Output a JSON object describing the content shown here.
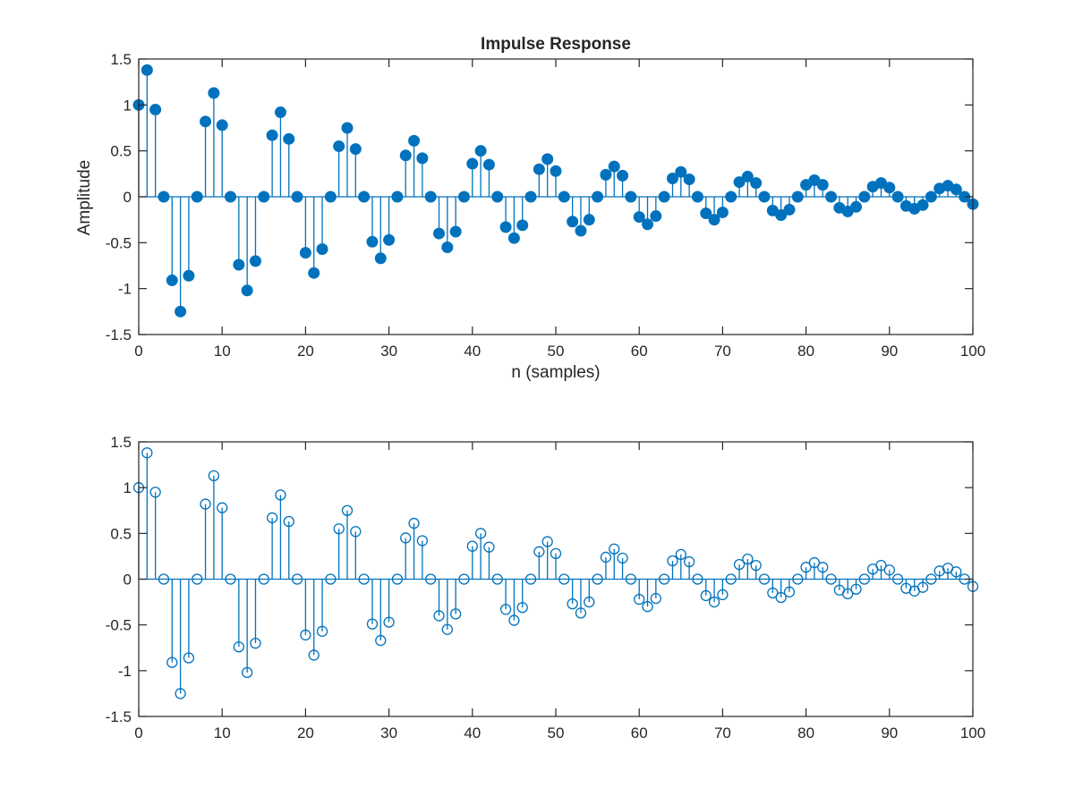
{
  "figure": {
    "background": "#ffffff",
    "axis_color": "#262626"
  },
  "chart_data": [
    {
      "type": "stem",
      "title": "Impulse Response",
      "xlabel": "n (samples)",
      "ylabel": "Amplitude",
      "xlim": [
        0,
        100
      ],
      "ylim": [
        -1.5,
        1.5
      ],
      "xticks": [
        0,
        10,
        20,
        30,
        40,
        50,
        60,
        70,
        80,
        90,
        100
      ],
      "xtick_labels": [
        "0",
        "10",
        "20",
        "30",
        "40",
        "50",
        "60",
        "70",
        "80",
        "90",
        "100"
      ],
      "yticks": [
        -1.5,
        -1,
        -0.5,
        0,
        0.5,
        1,
        1.5
      ],
      "ytick_labels": [
        "-1.5",
        "-1",
        "-0.5",
        "0",
        "0.5",
        "1",
        "1.5"
      ],
      "grid": false,
      "marker": "filled-circle",
      "color": "#0072BD",
      "series": [
        {
          "x": [
            0,
            1,
            2,
            3,
            4,
            5,
            6,
            7,
            8,
            9,
            10,
            11,
            12,
            13,
            14,
            15,
            16,
            17,
            18,
            19,
            20,
            21,
            22,
            23,
            24,
            25,
            26,
            27,
            28,
            29,
            30,
            31,
            32,
            33,
            34,
            35,
            36,
            37,
            38,
            39,
            40,
            41,
            42,
            43,
            44,
            45,
            46,
            47,
            48,
            49,
            50,
            51,
            52,
            53,
            54,
            55,
            56,
            57,
            58,
            59,
            60,
            61,
            62,
            63,
            64,
            65,
            66,
            67,
            68,
            69,
            70,
            71,
            72,
            73,
            74,
            75,
            76,
            77,
            78,
            79,
            80,
            81,
            82,
            83,
            84,
            85,
            86,
            87,
            88,
            89,
            90,
            91,
            92,
            93,
            94,
            95,
            96,
            97,
            98,
            99,
            100
          ],
          "y": [
            1.0,
            1.38,
            0.95,
            0.0,
            -0.91,
            -1.25,
            -0.86,
            0.0,
            0.82,
            1.13,
            0.78,
            0.0,
            -0.74,
            -1.02,
            -0.7,
            0.0,
            0.67,
            0.92,
            0.63,
            0.0,
            -0.61,
            -0.83,
            -0.57,
            0.0,
            0.55,
            0.75,
            0.52,
            0.0,
            -0.49,
            -0.67,
            -0.47,
            0.0,
            0.45,
            0.61,
            0.42,
            0.0,
            -0.4,
            -0.55,
            -0.38,
            0.0,
            0.36,
            0.5,
            0.35,
            0.0,
            -0.33,
            -0.45,
            -0.31,
            0.0,
            0.3,
            0.41,
            0.28,
            0.0,
            -0.27,
            -0.37,
            -0.25,
            0.0,
            0.24,
            0.33,
            0.23,
            0.0,
            -0.22,
            -0.3,
            -0.21,
            0.0,
            0.2,
            0.27,
            0.19,
            0.0,
            -0.18,
            -0.25,
            -0.17,
            0.0,
            0.16,
            0.22,
            0.15,
            0.0,
            -0.15,
            -0.2,
            -0.14,
            0.0,
            0.13,
            0.18,
            0.13,
            0.0,
            -0.12,
            -0.16,
            -0.11,
            0.0,
            0.11,
            0.15,
            0.1,
            0.0,
            -0.1,
            -0.13,
            -0.09,
            0.0,
            0.09,
            0.12,
            0.08,
            0.0,
            -0.08
          ]
        }
      ]
    },
    {
      "type": "stem",
      "title": "",
      "xlabel": "",
      "ylabel": "",
      "xlim": [
        0,
        100
      ],
      "ylim": [
        -1.5,
        1.5
      ],
      "xticks": [
        0,
        10,
        20,
        30,
        40,
        50,
        60,
        70,
        80,
        90,
        100
      ],
      "xtick_labels": [
        "0",
        "10",
        "20",
        "30",
        "40",
        "50",
        "60",
        "70",
        "80",
        "90",
        "100"
      ],
      "yticks": [
        -1.5,
        -1,
        -0.5,
        0,
        0.5,
        1,
        1.5
      ],
      "ytick_labels": [
        "-1.5",
        "-1",
        "-0.5",
        "0",
        "0.5",
        "1",
        "1.5"
      ],
      "grid": false,
      "marker": "open-circle",
      "color": "#0072BD",
      "series": [
        {
          "x": [
            0,
            1,
            2,
            3,
            4,
            5,
            6,
            7,
            8,
            9,
            10,
            11,
            12,
            13,
            14,
            15,
            16,
            17,
            18,
            19,
            20,
            21,
            22,
            23,
            24,
            25,
            26,
            27,
            28,
            29,
            30,
            31,
            32,
            33,
            34,
            35,
            36,
            37,
            38,
            39,
            40,
            41,
            42,
            43,
            44,
            45,
            46,
            47,
            48,
            49,
            50,
            51,
            52,
            53,
            54,
            55,
            56,
            57,
            58,
            59,
            60,
            61,
            62,
            63,
            64,
            65,
            66,
            67,
            68,
            69,
            70,
            71,
            72,
            73,
            74,
            75,
            76,
            77,
            78,
            79,
            80,
            81,
            82,
            83,
            84,
            85,
            86,
            87,
            88,
            89,
            90,
            91,
            92,
            93,
            94,
            95,
            96,
            97,
            98,
            99,
            100
          ],
          "y": [
            1.0,
            1.38,
            0.95,
            0.0,
            -0.91,
            -1.25,
            -0.86,
            0.0,
            0.82,
            1.13,
            0.78,
            0.0,
            -0.74,
            -1.02,
            -0.7,
            0.0,
            0.67,
            0.92,
            0.63,
            0.0,
            -0.61,
            -0.83,
            -0.57,
            0.0,
            0.55,
            0.75,
            0.52,
            0.0,
            -0.49,
            -0.67,
            -0.47,
            0.0,
            0.45,
            0.61,
            0.42,
            0.0,
            -0.4,
            -0.55,
            -0.38,
            0.0,
            0.36,
            0.5,
            0.35,
            0.0,
            -0.33,
            -0.45,
            -0.31,
            0.0,
            0.3,
            0.41,
            0.28,
            0.0,
            -0.27,
            -0.37,
            -0.25,
            0.0,
            0.24,
            0.33,
            0.23,
            0.0,
            -0.22,
            -0.3,
            -0.21,
            0.0,
            0.2,
            0.27,
            0.19,
            0.0,
            -0.18,
            -0.25,
            -0.17,
            0.0,
            0.16,
            0.22,
            0.15,
            0.0,
            -0.15,
            -0.2,
            -0.14,
            0.0,
            0.13,
            0.18,
            0.13,
            0.0,
            -0.12,
            -0.16,
            -0.11,
            0.0,
            0.11,
            0.15,
            0.1,
            0.0,
            -0.1,
            -0.13,
            -0.09,
            0.0,
            0.09,
            0.12,
            0.08,
            0.0,
            -0.08
          ]
        }
      ]
    }
  ]
}
